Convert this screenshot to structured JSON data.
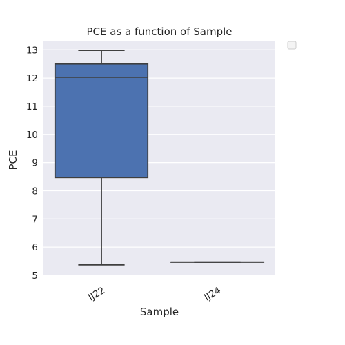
{
  "chart_data": {
    "type": "box",
    "title": "PCE as a function of Sample",
    "xlabel": "Sample",
    "ylabel": "PCE",
    "categories": [
      "IJ22",
      "IJ24"
    ],
    "boxes": [
      {
        "category": "IJ22",
        "min": 5.37,
        "q1": 8.47,
        "median": 12.03,
        "q3": 12.5,
        "max": 12.98
      },
      {
        "category": "IJ24",
        "min": 5.47,
        "q1": 5.47,
        "median": 5.47,
        "q3": 5.47,
        "max": 5.47
      }
    ],
    "ylim": [
      5,
      13.3
    ],
    "yticks": [
      5,
      6,
      7,
      8,
      9,
      10,
      11,
      12,
      13
    ],
    "grid": true,
    "legend": "outside-top-right-empty",
    "colors": {
      "plot_background": "#EAEAF2",
      "grid": "#FFFFFF",
      "box_fill": "#4C72B0",
      "box_edge": "#3F3F3F",
      "legend_border": "#CCCCCC"
    }
  }
}
